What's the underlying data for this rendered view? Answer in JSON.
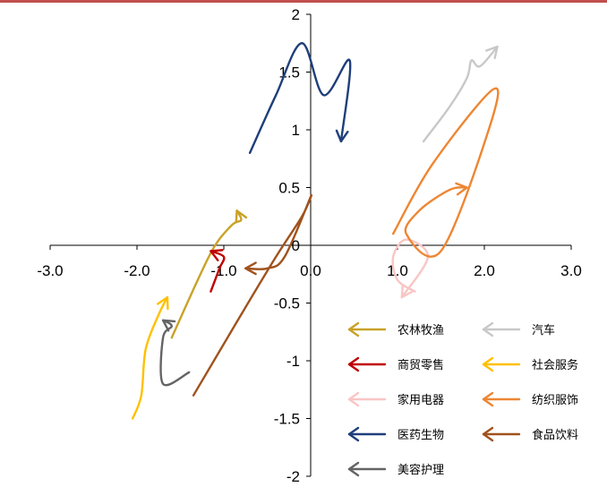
{
  "chart_data": {
    "type": "line",
    "title": "",
    "xlabel": "",
    "ylabel": "",
    "xlim": [
      -3.0,
      3.0
    ],
    "ylim": [
      -2,
      2
    ],
    "x_ticks": [
      "-3.0",
      "-2.0",
      "-1.0",
      "0.0",
      "1.0",
      "2.0",
      "3.0"
    ],
    "y_ticks": [
      "2",
      "1.5",
      "1",
      "0.5",
      "0",
      "-0.5",
      "-1",
      "-1.5",
      "-2"
    ],
    "grid": false,
    "legend_position": "bottom-right",
    "series": [
      {
        "name": "农林牧渔",
        "color": "#c9a227",
        "points": [
          [
            -1.6,
            -0.8
          ],
          [
            -1.3,
            -0.3
          ],
          [
            -1.1,
            0.0
          ],
          [
            -0.9,
            0.18
          ],
          [
            -0.8,
            0.22
          ],
          [
            -0.85,
            0.3
          ]
        ]
      },
      {
        "name": "汽车",
        "color": "#c8c8c8",
        "points": [
          [
            1.3,
            0.9
          ],
          [
            1.6,
            1.2
          ],
          [
            1.8,
            1.45
          ],
          [
            1.85,
            1.6
          ],
          [
            1.95,
            1.55
          ],
          [
            2.15,
            1.72
          ]
        ]
      },
      {
        "name": "商贸零售",
        "color": "#c00000",
        "points": [
          [
            -1.15,
            -0.4
          ],
          [
            -1.05,
            -0.2
          ],
          [
            -1.0,
            -0.1
          ],
          [
            -1.15,
            -0.05
          ]
        ]
      },
      {
        "name": "社会服务",
        "color": "#ffc000",
        "points": [
          [
            -2.05,
            -1.5
          ],
          [
            -1.95,
            -1.3
          ],
          [
            -1.9,
            -0.9
          ],
          [
            -1.75,
            -0.6
          ],
          [
            -1.65,
            -0.45
          ]
        ]
      },
      {
        "name": "家用电器",
        "color": "#f8c6c4",
        "points": [
          [
            1.2,
            -0.4
          ],
          [
            1.0,
            -0.3
          ],
          [
            0.95,
            -0.1
          ],
          [
            1.1,
            0.05
          ],
          [
            1.35,
            -0.1
          ],
          [
            1.05,
            -0.45
          ]
        ]
      },
      {
        "name": "纺织服饰",
        "color": "#ed8633",
        "points": [
          [
            0.95,
            0.1
          ],
          [
            1.4,
            0.7
          ],
          [
            2.1,
            1.35
          ],
          [
            2.05,
            1.0
          ],
          [
            1.5,
            -0.05
          ],
          [
            1.1,
            0.1
          ],
          [
            1.25,
            0.3
          ],
          [
            1.6,
            0.48
          ],
          [
            1.8,
            0.5
          ]
        ]
      },
      {
        "name": "医药生物",
        "color": "#1f3f7a",
        "points": [
          [
            -0.7,
            0.8
          ],
          [
            -0.4,
            1.3
          ],
          [
            -0.1,
            1.75
          ],
          [
            0.15,
            1.3
          ],
          [
            0.45,
            1.6
          ],
          [
            0.35,
            0.9
          ]
        ]
      },
      {
        "name": "食品饮料",
        "color": "#a0521d",
        "points": [
          [
            -1.35,
            -1.3
          ],
          [
            -0.8,
            -0.6
          ],
          [
            -0.4,
            -0.1
          ],
          [
            -0.1,
            0.25
          ],
          [
            0.0,
            0.42
          ],
          [
            -0.3,
            -0.1
          ],
          [
            -0.5,
            -0.2
          ],
          [
            -0.75,
            -0.2
          ]
        ]
      },
      {
        "name": "美容护理",
        "color": "#646464",
        "points": [
          [
            -1.4,
            -1.1
          ],
          [
            -1.7,
            -1.2
          ],
          [
            -1.7,
            -0.8
          ],
          [
            -1.6,
            -0.7
          ],
          [
            -1.7,
            -0.65
          ]
        ]
      }
    ]
  },
  "style": {
    "top_rule_color": "#c0504d"
  }
}
